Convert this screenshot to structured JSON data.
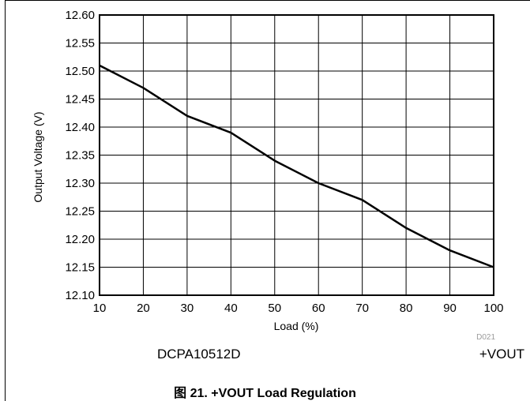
{
  "chart_data": {
    "type": "line",
    "title": "",
    "xlabel": "Load (%)",
    "ylabel": "Output Voltage (V)",
    "x": [
      10,
      20,
      30,
      40,
      50,
      60,
      70,
      80,
      90,
      100
    ],
    "series": [
      {
        "values": [
          12.51,
          12.47,
          12.42,
          12.39,
          12.34,
          12.3,
          12.27,
          12.22,
          12.18,
          12.15
        ]
      }
    ],
    "xlim": [
      10,
      100
    ],
    "ylim": [
      12.1,
      12.6
    ],
    "xticks": [
      "10",
      "20",
      "30",
      "40",
      "50",
      "60",
      "70",
      "80",
      "90",
      "100"
    ],
    "yticks": [
      "12.10",
      "12.15",
      "12.20",
      "12.25",
      "12.30",
      "12.35",
      "12.40",
      "12.45",
      "12.50",
      "12.55",
      "12.60"
    ],
    "grid": true,
    "line_color": "#000000"
  },
  "figure": {
    "code": "D021",
    "device": "DCPA10512D",
    "output": "+VOUT",
    "caption": "图 21. +VOUT Load Regulation"
  }
}
